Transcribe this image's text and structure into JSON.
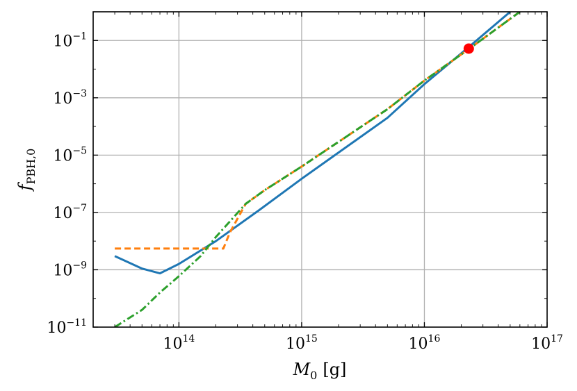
{
  "chart_data": {
    "type": "line",
    "title": "",
    "xlabel": {
      "symbol": "M",
      "sub": "0",
      "unit": "[g]"
    },
    "ylabel": {
      "symbol": "f",
      "sub": "PBH,0"
    },
    "xscale": "log",
    "yscale": "log",
    "xlim": [
      20000000000000.0,
      1e+17
    ],
    "ylim": [
      1e-11,
      1
    ],
    "grid": true,
    "legend": "none",
    "x_ticks": [
      {
        "value": 100000000000000.0,
        "base": "10",
        "exp": "14"
      },
      {
        "value": 1000000000000000.0,
        "base": "10",
        "exp": "15"
      },
      {
        "value": 1e+16,
        "base": "10",
        "exp": "16"
      },
      {
        "value": 1e+17,
        "base": "10",
        "exp": "17"
      }
    ],
    "y_ticks": [
      {
        "value": 1e-11,
        "base": "10",
        "exp": "−11"
      },
      {
        "value": 1e-09,
        "base": "10",
        "exp": "−9"
      },
      {
        "value": 1e-07,
        "base": "10",
        "exp": "−7"
      },
      {
        "value": 1e-05,
        "base": "10",
        "exp": "−5"
      },
      {
        "value": 0.001,
        "base": "10",
        "exp": "−3"
      },
      {
        "value": 0.1,
        "base": "10",
        "exp": "−1"
      }
    ],
    "series": [
      {
        "color": "#1f77b4",
        "style": "solid",
        "points": [
          [
            30000000000000.0,
            3e-09
          ],
          [
            50000000000000.0,
            1.1e-09
          ],
          [
            70000000000000.0,
            7.5e-10
          ],
          [
            100000000000000.0,
            1.6e-09
          ],
          [
            200000000000000.0,
            1e-08
          ],
          [
            450000000000000.0,
            1.2e-07
          ],
          [
            1000000000000000.0,
            1.5e-06
          ],
          [
            5000000000000000.0,
            0.0002
          ],
          [
            1e+16,
            0.003
          ],
          [
            2.2e+16,
            0.05
          ],
          [
            5e+16,
            1.0
          ]
        ]
      },
      {
        "color": "#ff7f0e",
        "style": "dashed",
        "points": [
          [
            30000000000000.0,
            5.5e-09
          ],
          [
            150000000000000.0,
            5.5e-09
          ],
          [
            230000000000000.0,
            5.5e-09
          ],
          [
            260000000000000.0,
            2e-08
          ],
          [
            350000000000000.0,
            2e-07
          ],
          [
            500000000000000.0,
            6e-07
          ],
          [
            1000000000000000.0,
            4e-06
          ],
          [
            5000000000000000.0,
            0.0004
          ],
          [
            1e+16,
            0.004
          ],
          [
            2.3e+16,
            0.05
          ],
          [
            6e+16,
            1.0
          ]
        ]
      },
      {
        "color": "#2ca02c",
        "style": "dashdot",
        "points": [
          [
            30000000000000.0,
            1e-11
          ],
          [
            50000000000000.0,
            4e-11
          ],
          [
            70000000000000.0,
            1.6e-10
          ],
          [
            100000000000000.0,
            6e-10
          ],
          [
            150000000000000.0,
            3e-09
          ],
          [
            200000000000000.0,
            1.4e-08
          ],
          [
            250000000000000.0,
            4e-08
          ],
          [
            350000000000000.0,
            2e-07
          ],
          [
            500000000000000.0,
            6e-07
          ],
          [
            1000000000000000.0,
            4e-06
          ],
          [
            5000000000000000.0,
            0.0004
          ],
          [
            1e+16,
            0.004
          ],
          [
            2.3e+16,
            0.05
          ],
          [
            6e+16,
            1.0
          ]
        ]
      }
    ],
    "markers": [
      {
        "x": 2.3e+16,
        "y": 0.052,
        "color": "#ff0000"
      }
    ]
  }
}
